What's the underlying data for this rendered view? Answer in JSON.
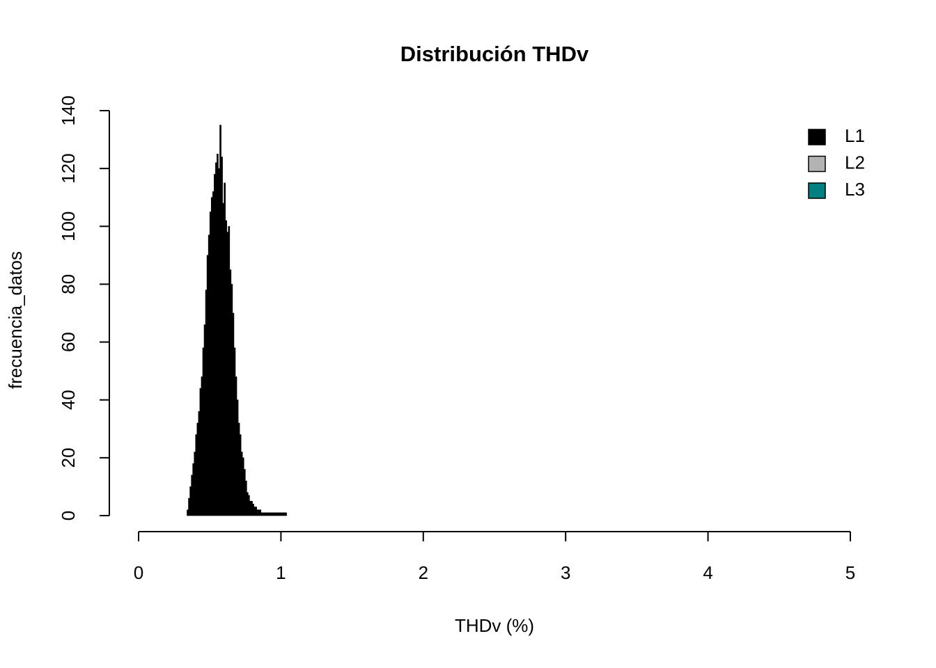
{
  "chart_data": {
    "type": "histogram",
    "title": "Distribución THDv",
    "x_label": "THDv (%)",
    "y_label": "frecuencia_datos",
    "bins": [
      0.34,
      0.35,
      0.36,
      0.37,
      0.38,
      0.39,
      0.4,
      0.41,
      0.42,
      0.43,
      0.44,
      0.45,
      0.46,
      0.47,
      0.48,
      0.49,
      0.5,
      0.51,
      0.52,
      0.53,
      0.54,
      0.55,
      0.56,
      0.57,
      0.58,
      0.59,
      0.6,
      0.61,
      0.62,
      0.63,
      0.64,
      0.65,
      0.66,
      0.67,
      0.68,
      0.69,
      0.7,
      0.71,
      0.72,
      0.73,
      0.74,
      0.75,
      0.76,
      0.77,
      0.78,
      0.79,
      0.8,
      0.81,
      0.82,
      0.83,
      0.84,
      0.85,
      0.86,
      0.87,
      0.88,
      0.89,
      0.9,
      0.91,
      0.92,
      0.93,
      0.94,
      0.95,
      0.96,
      0.97,
      0.98,
      0.99,
      1.0,
      1.01,
      1.02,
      1.03,
      1.04
    ],
    "values": [
      2,
      6,
      10,
      14,
      18,
      22,
      28,
      32,
      36,
      44,
      48,
      58,
      66,
      78,
      90,
      97,
      105,
      110,
      112,
      118,
      122,
      125,
      120,
      135,
      124,
      108,
      115,
      102,
      98,
      100,
      85,
      80,
      70,
      58,
      48,
      40,
      32,
      28,
      22,
      20,
      16,
      12,
      8,
      7,
      5,
      5,
      4,
      3,
      3,
      2,
      2,
      2,
      1,
      1,
      1,
      1,
      1,
      1,
      1,
      1,
      1,
      1,
      1,
      1,
      1,
      1,
      1,
      1,
      1,
      1
    ],
    "color": "#000000",
    "legend": {
      "position": "topright",
      "labels": [
        "L1",
        "L2",
        "L3"
      ],
      "colors": [
        "#000000",
        "#b3b3b3",
        "#008080"
      ]
    },
    "xlim": [
      0,
      5
    ],
    "xticks": [
      0,
      1,
      2,
      3,
      4,
      5
    ],
    "ylim": [
      0,
      140
    ],
    "yticks": [
      0,
      20,
      40,
      60,
      80,
      100,
      120,
      140
    ]
  }
}
